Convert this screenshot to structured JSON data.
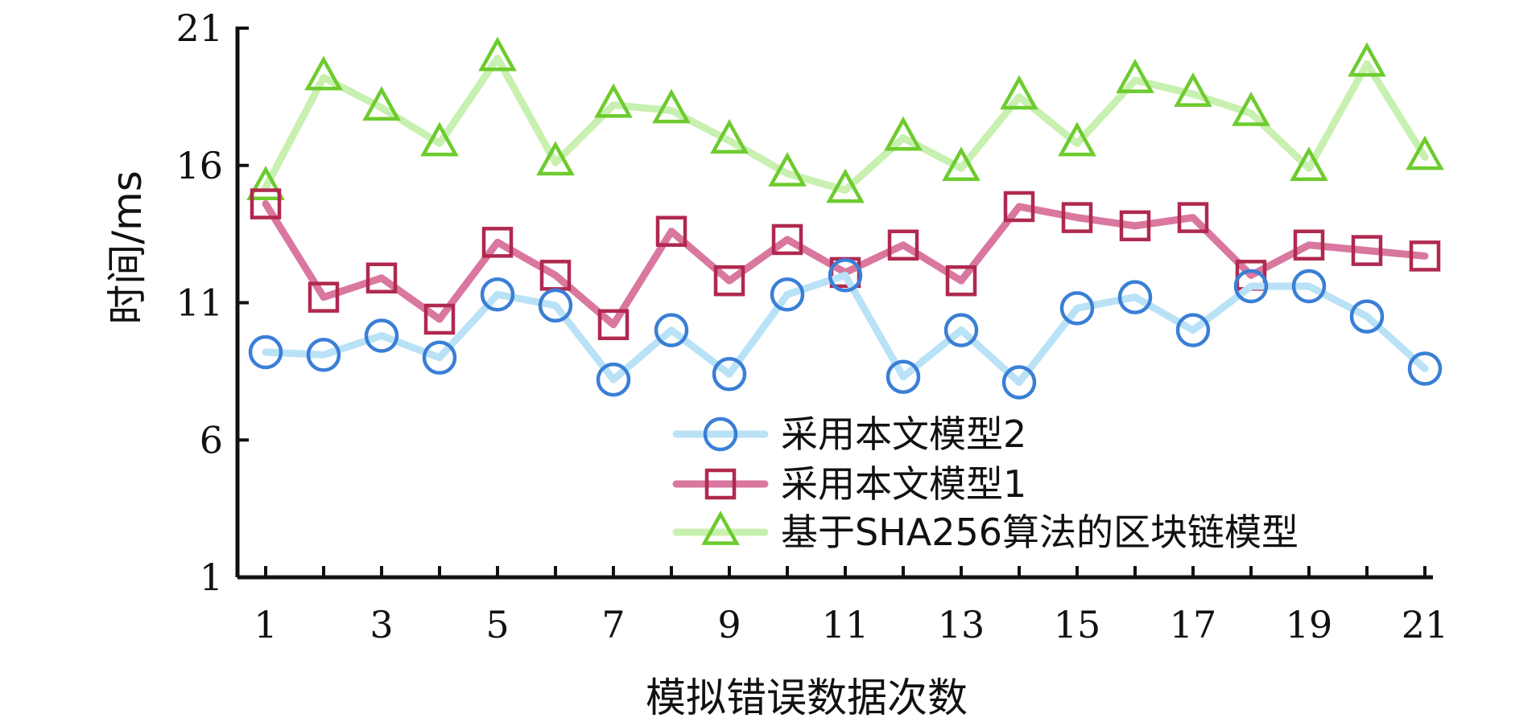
{
  "chart_data": {
    "type": "line",
    "title": "",
    "xlabel": "模拟错误数据次数",
    "ylabel": "时间/ms",
    "xlim": [
      0.5,
      21.0
    ],
    "ylim": [
      1,
      21
    ],
    "x_ticks": [
      1,
      3,
      5,
      7,
      9,
      11,
      13,
      15,
      17,
      19,
      21
    ],
    "y_ticks": [
      1,
      6,
      11,
      16,
      21
    ],
    "x": [
      1,
      2,
      3,
      4,
      5,
      6,
      7,
      8,
      9,
      10,
      11,
      12,
      13,
      14,
      15,
      16,
      17,
      18,
      19,
      20,
      21
    ],
    "legend_position": "lower-right",
    "series": [
      {
        "name": "采用本文模型2",
        "line_color": "#b9e2f7",
        "marker_color": "#3a7fd6",
        "marker": "circle",
        "values": [
          9.2,
          9.1,
          9.8,
          9.0,
          11.3,
          10.9,
          8.2,
          10.0,
          8.4,
          11.3,
          12.0,
          8.3,
          10.0,
          8.1,
          10.8,
          11.2,
          10.0,
          11.6,
          11.6,
          10.5,
          8.6
        ]
      },
      {
        "name": "采用本文模型1",
        "line_color": "#d9779f",
        "marker_color": "#b0294f",
        "marker": "square",
        "values": [
          14.6,
          11.2,
          11.9,
          10.4,
          13.2,
          12.0,
          10.2,
          13.6,
          11.8,
          13.3,
          12.1,
          13.1,
          11.8,
          14.5,
          14.1,
          13.8,
          14.1,
          12.0,
          13.1,
          12.9,
          12.7
        ]
      },
      {
        "name": "基于SHA256算法的区块链模型",
        "line_color": "#c8f0b0",
        "marker_color": "#6dcb2e",
        "marker": "triangle",
        "values": [
          15.2,
          19.2,
          18.1,
          16.8,
          19.9,
          16.1,
          18.2,
          18.0,
          16.9,
          15.7,
          15.1,
          17.0,
          15.9,
          18.5,
          16.8,
          19.1,
          18.6,
          17.9,
          15.9,
          19.7,
          16.3
        ]
      }
    ]
  }
}
